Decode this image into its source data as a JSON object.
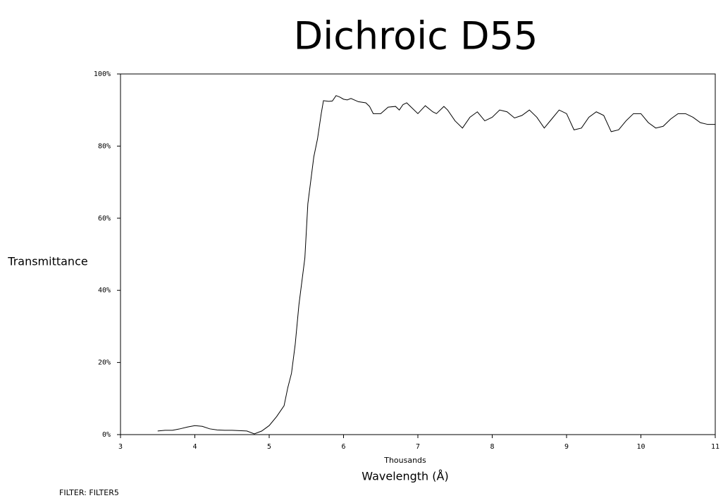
{
  "chart_data": {
    "type": "line",
    "title": "Dichroic D55",
    "y_label": "Transmittance",
    "x_label": "Wavelength (Å)",
    "x_unit_label": "Thousands",
    "color": "#000000",
    "xlim": [
      3,
      11
    ],
    "ylim": [
      0,
      100
    ],
    "xticks": [
      3,
      4,
      5,
      6,
      7,
      8,
      9,
      10,
      11
    ],
    "yticks": [
      {
        "value": 0,
        "label": "0%"
      },
      {
        "value": 20,
        "label": "20%"
      },
      {
        "value": 40,
        "label": "40%"
      },
      {
        "value": 60,
        "label": "60%"
      },
      {
        "value": 80,
        "label": "80%"
      },
      {
        "value": 100,
        "label": "100%"
      }
    ],
    "x": [
      3.5,
      3.6,
      3.7,
      3.8,
      3.9,
      4.0,
      4.1,
      4.2,
      4.3,
      4.4,
      4.5,
      4.6,
      4.7,
      4.8,
      4.9,
      5.0,
      5.1,
      5.2,
      5.25,
      5.3,
      5.35,
      5.4,
      5.48,
      5.52,
      5.6,
      5.65,
      5.7,
      5.73,
      5.8,
      5.85,
      5.9,
      5.95,
      6.0,
      6.05,
      6.1,
      6.2,
      6.3,
      6.35,
      6.4,
      6.5,
      6.6,
      6.7,
      6.75,
      6.8,
      6.85,
      6.9,
      7.0,
      7.1,
      7.2,
      7.25,
      7.35,
      7.4,
      7.5,
      7.6,
      7.7,
      7.8,
      7.9,
      8.0,
      8.1,
      8.2,
      8.3,
      8.4,
      8.5,
      8.6,
      8.7,
      8.8,
      8.9,
      9.0,
      9.1,
      9.2,
      9.3,
      9.4,
      9.5,
      9.6,
      9.7,
      9.8,
      9.9,
      10.0,
      10.1,
      10.2,
      10.3,
      10.4,
      10.5,
      10.6,
      10.7,
      10.8,
      10.9,
      11.0
    ],
    "values": [
      1,
      1.2,
      1.2,
      1.6,
      2.1,
      2.5,
      2.3,
      1.6,
      1.3,
      1.2,
      1.2,
      1.1,
      1,
      0.2,
      1,
      2.5,
      5,
      8,
      13,
      17,
      25,
      36,
      49,
      64,
      77,
      82,
      89,
      92.6,
      92.4,
      92.5,
      94,
      93.6,
      93,
      92.8,
      93.2,
      92.3,
      92,
      91,
      89,
      89,
      90.8,
      91,
      90,
      91.5,
      92,
      91,
      89,
      91.2,
      89.5,
      89,
      91,
      90,
      87,
      85,
      88,
      89.5,
      87,
      88,
      90,
      89.5,
      87.8,
      88.5,
      90,
      88,
      85,
      87.5,
      90,
      89,
      84.5,
      85,
      88,
      89.5,
      88.5,
      84,
      84.5,
      87,
      89,
      89,
      86.5,
      85,
      85.5,
      87.5,
      89,
      89,
      88,
      86.5,
      86,
      86
    ]
  },
  "footer": "FILTER: FILTER5"
}
